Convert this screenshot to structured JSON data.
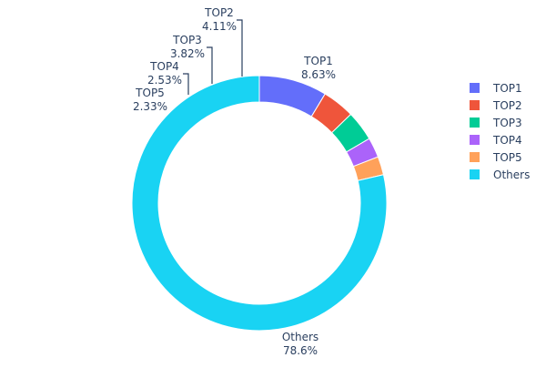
{
  "chart_data": {
    "type": "pie",
    "hole": true,
    "labels": [
      "TOP1",
      "TOP2",
      "TOP3",
      "TOP4",
      "TOP5",
      "Others"
    ],
    "values": [
      8.63,
      4.11,
      3.82,
      2.53,
      2.33,
      78.6
    ],
    "value_labels": [
      "8.63%",
      "4.11%",
      "3.82%",
      "2.53%",
      "2.33%",
      "78.6%"
    ],
    "colors": [
      "#636efa",
      "#ef553b",
      "#00cc96",
      "#ab63fa",
      "#ffa15a",
      "#19d3f3"
    ],
    "legend": {
      "placement": "right",
      "entries": [
        "TOP1",
        "TOP2",
        "TOP3",
        "TOP4",
        "TOP5",
        "Others"
      ]
    },
    "title": ""
  }
}
